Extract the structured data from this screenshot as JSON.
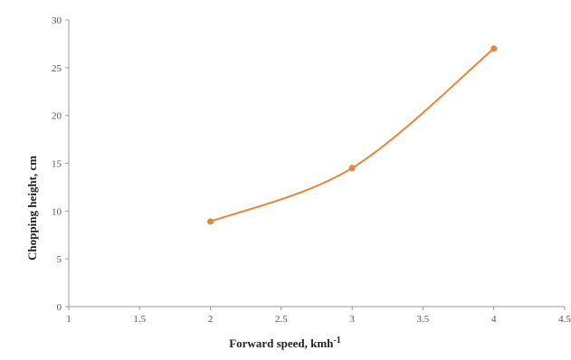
{
  "chart_data": {
    "type": "line",
    "title": "",
    "xlabel": "Forward speed, kmh",
    "xlabel_superscript": "-1",
    "ylabel": "Chopping height, cm",
    "xlim": [
      1,
      4.5
    ],
    "ylim": [
      0,
      30
    ],
    "x_ticks": [
      "1",
      "1.5",
      "2",
      "2.5",
      "3",
      "3.5",
      "4",
      "4.5"
    ],
    "y_ticks": [
      "0",
      "5",
      "10",
      "15",
      "20",
      "25",
      "30"
    ],
    "series": [
      {
        "x": [
          2,
          3,
          4
        ],
        "y": [
          8.9,
          14.5,
          27
        ]
      }
    ],
    "grid": false,
    "legend": "none",
    "colors": {
      "series": "#E8843A",
      "axis": "#9a9a9a"
    }
  }
}
